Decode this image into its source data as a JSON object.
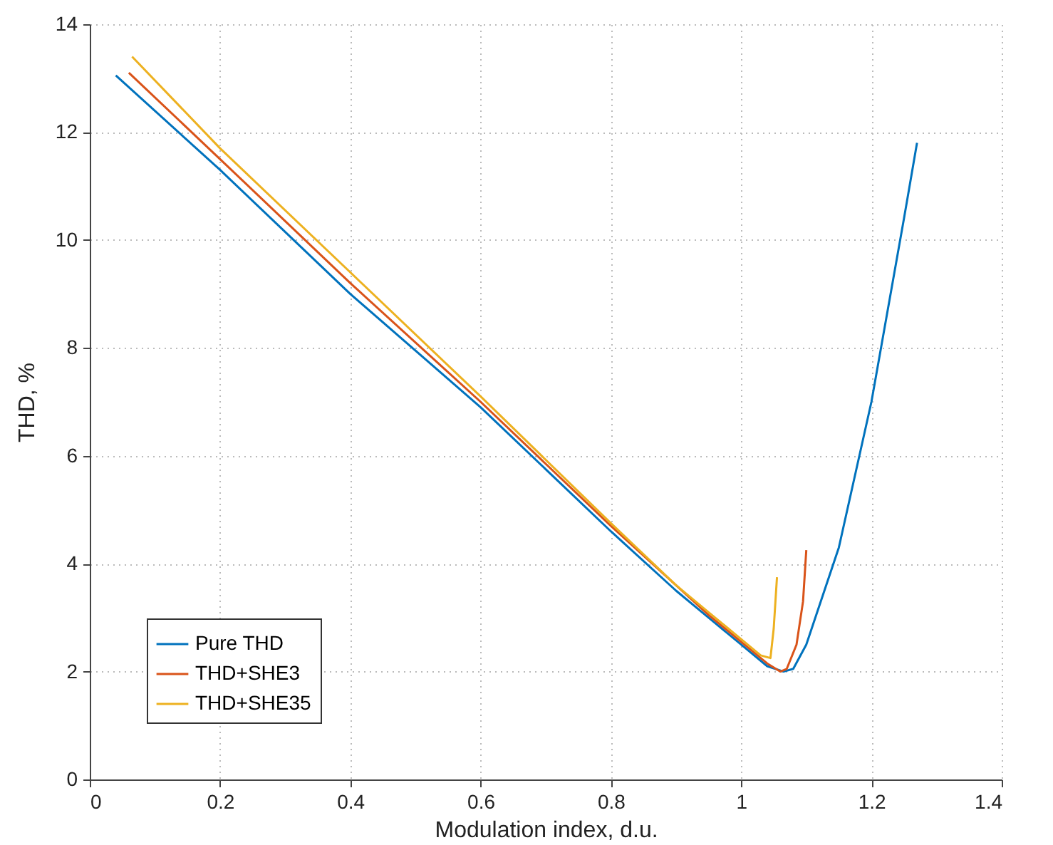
{
  "chart_data": {
    "type": "line",
    "xlabel": "Modulation index, d.u.",
    "ylabel": "THD, %",
    "xlim": [
      0,
      1.4
    ],
    "xticks": [
      0,
      0.2,
      0.4,
      0.6,
      0.8,
      1,
      1.2,
      1.4
    ],
    "ylim": [
      0,
      14
    ],
    "yticks": [
      0,
      2,
      4,
      6,
      8,
      10,
      12,
      14
    ],
    "grid": true,
    "legend": "bottom left",
    "line_style": "solid",
    "series": [
      {
        "name": "Pure THD",
        "color": "#0072bd",
        "x": [
          0.04,
          0.2,
          0.4,
          0.6,
          0.8,
          0.9,
          0.95,
          1.0,
          1.04,
          1.065,
          1.08,
          1.1,
          1.15,
          1.2,
          1.25,
          1.27
        ],
        "values": [
          13.05,
          11.3,
          9.0,
          6.9,
          4.6,
          3.5,
          3.0,
          2.5,
          2.1,
          2.0,
          2.05,
          2.5,
          4.3,
          7.0,
          10.4,
          11.8
        ]
      },
      {
        "name": "THD+SHE3",
        "color": "#d95319",
        "x": [
          0.06,
          0.2,
          0.4,
          0.6,
          0.8,
          0.9,
          0.95,
          1.0,
          1.04,
          1.06,
          1.07,
          1.085,
          1.095,
          1.1
        ],
        "values": [
          13.1,
          11.5,
          9.2,
          7.0,
          4.7,
          3.6,
          3.05,
          2.55,
          2.15,
          2.0,
          2.05,
          2.5,
          3.3,
          4.25
        ]
      },
      {
        "name": "THD+SHE35",
        "color": "#edb120",
        "x": [
          0.065,
          0.2,
          0.4,
          0.6,
          0.8,
          0.9,
          0.95,
          1.0,
          1.03,
          1.045,
          1.05,
          1.055
        ],
        "values": [
          13.4,
          11.7,
          9.4,
          7.1,
          4.75,
          3.6,
          3.1,
          2.6,
          2.3,
          2.25,
          2.8,
          3.75
        ]
      }
    ]
  }
}
